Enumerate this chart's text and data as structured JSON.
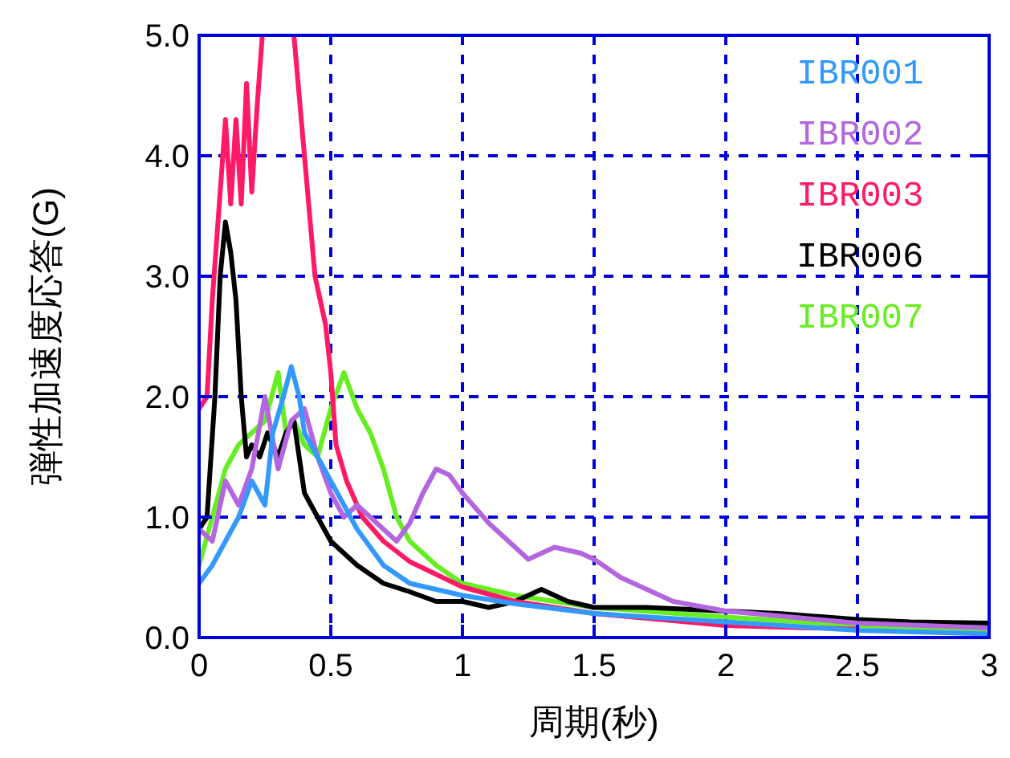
{
  "chart_data": {
    "type": "line",
    "xlabel": "周期(秒)",
    "ylabel": "弾性加速度応答(G)",
    "xlim": [
      0,
      3
    ],
    "ylim": [
      0,
      5
    ],
    "xticks": [
      0,
      0.5,
      1,
      1.5,
      2,
      2.5,
      3
    ],
    "yticks": [
      {
        "value": 0,
        "label": "0.0"
      },
      {
        "value": 1,
        "label": "1.0"
      },
      {
        "value": 2,
        "label": "2.0"
      },
      {
        "value": 3,
        "label": "3.0"
      },
      {
        "value": 4,
        "label": "4.0"
      },
      {
        "value": 5,
        "label": "5.0"
      }
    ],
    "grid": true,
    "line_style": "solid",
    "legend": "top right",
    "series": [
      {
        "name": "IBR001",
        "color": "#3399ff",
        "x": [
          0,
          0.05,
          0.1,
          0.15,
          0.2,
          0.25,
          0.28,
          0.32,
          0.35,
          0.38,
          0.4,
          0.45,
          0.5,
          0.55,
          0.6,
          0.7,
          0.8,
          1.0,
          1.2,
          1.5,
          2.0,
          2.5,
          3
        ],
        "values": [
          0.45,
          0.6,
          0.8,
          1.0,
          1.3,
          1.1,
          1.7,
          2.0,
          2.25,
          2.0,
          1.7,
          1.5,
          1.3,
          1.1,
          0.9,
          0.6,
          0.45,
          0.35,
          0.28,
          0.2,
          0.13,
          0.06,
          0.03
        ]
      },
      {
        "name": "IBR002",
        "color": "#b366e0",
        "x": [
          0,
          0.05,
          0.1,
          0.15,
          0.2,
          0.25,
          0.3,
          0.35,
          0.4,
          0.45,
          0.5,
          0.55,
          0.6,
          0.65,
          0.7,
          0.75,
          0.8,
          0.85,
          0.9,
          0.95,
          1.0,
          1.1,
          1.2,
          1.25,
          1.35,
          1.45,
          1.5,
          1.6,
          1.7,
          1.8,
          2.0,
          2.2,
          2.5,
          3
        ],
        "values": [
          0.9,
          0.8,
          1.3,
          1.1,
          1.4,
          2.0,
          1.4,
          1.8,
          1.9,
          1.5,
          1.2,
          1.0,
          1.1,
          1.0,
          0.9,
          0.8,
          0.95,
          1.2,
          1.4,
          1.35,
          1.2,
          0.95,
          0.75,
          0.65,
          0.75,
          0.7,
          0.65,
          0.5,
          0.4,
          0.3,
          0.22,
          0.18,
          0.12,
          0.08
        ]
      },
      {
        "name": "IBR003",
        "color": "#ff1a66",
        "x": [
          0,
          0.03,
          0.05,
          0.07,
          0.09,
          0.1,
          0.12,
          0.14,
          0.16,
          0.18,
          0.2,
          0.22,
          0.24,
          0.3,
          0.36,
          0.4,
          0.44,
          0.48,
          0.5,
          0.52,
          0.56,
          0.62,
          0.7,
          0.8,
          1.0,
          1.2,
          1.5,
          2.0,
          2.5
        ],
        "values": [
          1.9,
          2.0,
          2.8,
          3.4,
          4.0,
          4.3,
          3.6,
          4.3,
          3.6,
          4.6,
          3.7,
          4.4,
          5.0,
          null,
          5.0,
          4.0,
          3.0,
          2.6,
          2.2,
          1.6,
          1.3,
          1.0,
          0.8,
          0.63,
          0.42,
          0.3,
          0.2,
          0.1,
          0.07
        ]
      },
      {
        "name": "IBR006",
        "color": "#000000",
        "x": [
          0,
          0.03,
          0.06,
          0.08,
          0.1,
          0.12,
          0.14,
          0.16,
          0.18,
          0.2,
          0.23,
          0.26,
          0.3,
          0.33,
          0.36,
          0.4,
          0.45,
          0.5,
          0.6,
          0.7,
          0.8,
          0.9,
          1.0,
          1.1,
          1.2,
          1.3,
          1.4,
          1.5,
          1.7,
          2.0,
          2.2,
          2.5,
          2.7,
          3
        ],
        "values": [
          0.9,
          1.0,
          2.0,
          3.0,
          3.45,
          3.2,
          2.8,
          2.0,
          1.5,
          1.6,
          1.5,
          1.7,
          1.5,
          1.7,
          1.8,
          1.2,
          1.0,
          0.8,
          0.6,
          0.45,
          0.38,
          0.3,
          0.3,
          0.25,
          0.3,
          0.4,
          0.3,
          0.25,
          0.25,
          0.22,
          0.2,
          0.15,
          0.13,
          0.12
        ]
      },
      {
        "name": "IBR007",
        "color": "#66ee22",
        "x": [
          0,
          0.05,
          0.1,
          0.15,
          0.2,
          0.25,
          0.3,
          0.33,
          0.36,
          0.4,
          0.45,
          0.5,
          0.55,
          0.6,
          0.65,
          0.7,
          0.75,
          0.8,
          0.9,
          1.0,
          1.2,
          1.5,
          2.0,
          2.5,
          3
        ],
        "values": [
          0.6,
          1.0,
          1.4,
          1.6,
          1.7,
          1.8,
          2.2,
          1.7,
          1.8,
          1.6,
          1.5,
          1.9,
          2.2,
          1.9,
          1.7,
          1.4,
          1.0,
          0.8,
          0.6,
          0.45,
          0.35,
          0.25,
          0.17,
          0.1,
          0.05
        ]
      }
    ]
  }
}
